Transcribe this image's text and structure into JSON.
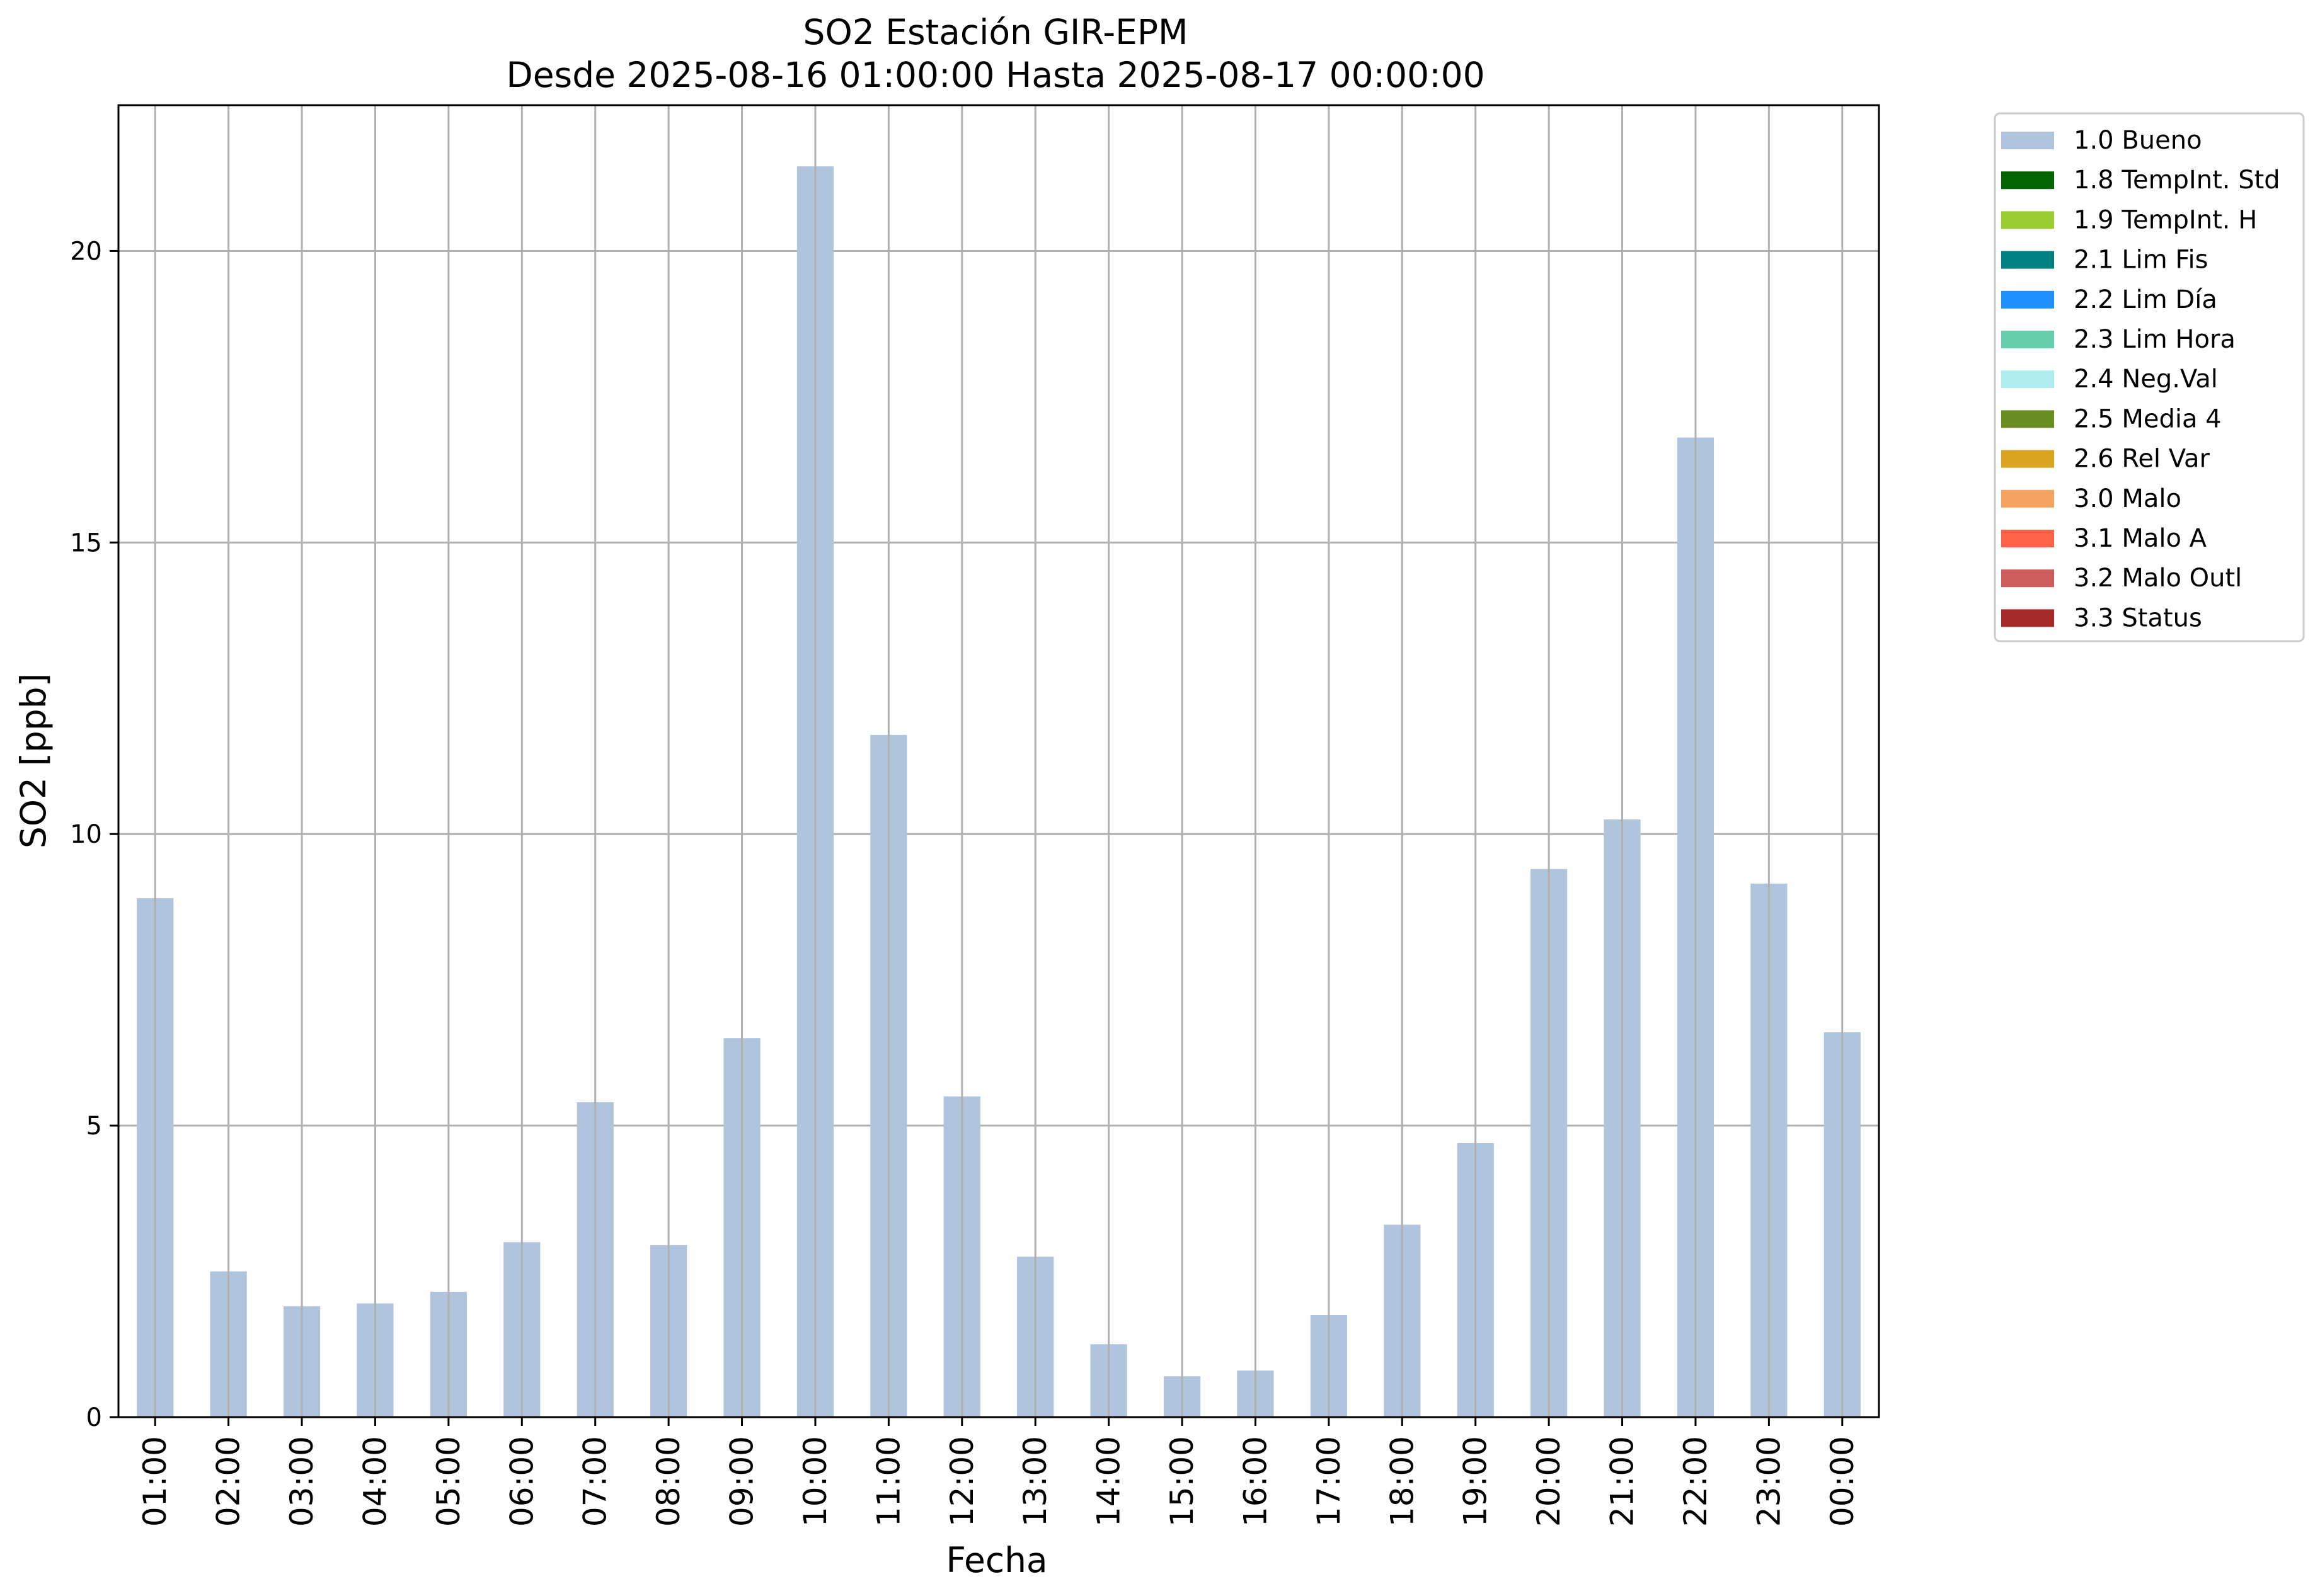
{
  "chart_data": {
    "type": "bar",
    "title": "SO2 Estación GIR-EPM",
    "subtitle": "Desde 2025-08-16 01:00:00 Hasta 2025-08-17 00:00:00",
    "xlabel": "Fecha",
    "ylabel": "SO2 [ppb]",
    "ylim": [
      0,
      22.5
    ],
    "yticks": [
      0,
      5,
      10,
      15,
      20
    ],
    "grid": true,
    "legend_position": "outside top-right",
    "categories": [
      "01:00",
      "02:00",
      "03:00",
      "04:00",
      "05:00",
      "06:00",
      "07:00",
      "08:00",
      "09:00",
      "10:00",
      "11:00",
      "12:00",
      "13:00",
      "14:00",
      "15:00",
      "16:00",
      "17:00",
      "18:00",
      "19:00",
      "20:00",
      "21:00",
      "22:00",
      "23:00",
      "00:00"
    ],
    "series": [
      {
        "name": "1.0 Bueno",
        "color": "#b0c4de",
        "values": [
          8.9,
          2.5,
          1.9,
          1.95,
          2.15,
          3.0,
          5.4,
          2.95,
          6.5,
          21.45,
          11.7,
          5.5,
          2.75,
          1.25,
          0.7,
          0.8,
          1.75,
          3.3,
          4.7,
          9.4,
          10.25,
          16.8,
          9.15,
          6.6
        ]
      }
    ],
    "legend": [
      {
        "label": "1.0 Bueno",
        "color": "#b0c4de"
      },
      {
        "label": "1.8 TempInt. Std",
        "color": "#006400"
      },
      {
        "label": "1.9 TempInt. H",
        "color": "#9acd32"
      },
      {
        "label": "2.1 Lim Fis",
        "color": "#008080"
      },
      {
        "label": "2.2 Lim Día",
        "color": "#1e90ff"
      },
      {
        "label": "2.3 Lim Hora",
        "color": "#66cdaa"
      },
      {
        "label": "2.4 Neg.Val",
        "color": "#afeeee"
      },
      {
        "label": "2.5 Media 4",
        "color": "#6b8e23"
      },
      {
        "label": "2.6 Rel Var",
        "color": "#daa520"
      },
      {
        "label": "3.0 Malo",
        "color": "#f4a460"
      },
      {
        "label": "3.1 Malo A",
        "color": "#ff6347"
      },
      {
        "label": "3.2 Malo Outl",
        "color": "#cd5c5c"
      },
      {
        "label": "3.3 Status",
        "color": "#a52a2a"
      }
    ]
  }
}
